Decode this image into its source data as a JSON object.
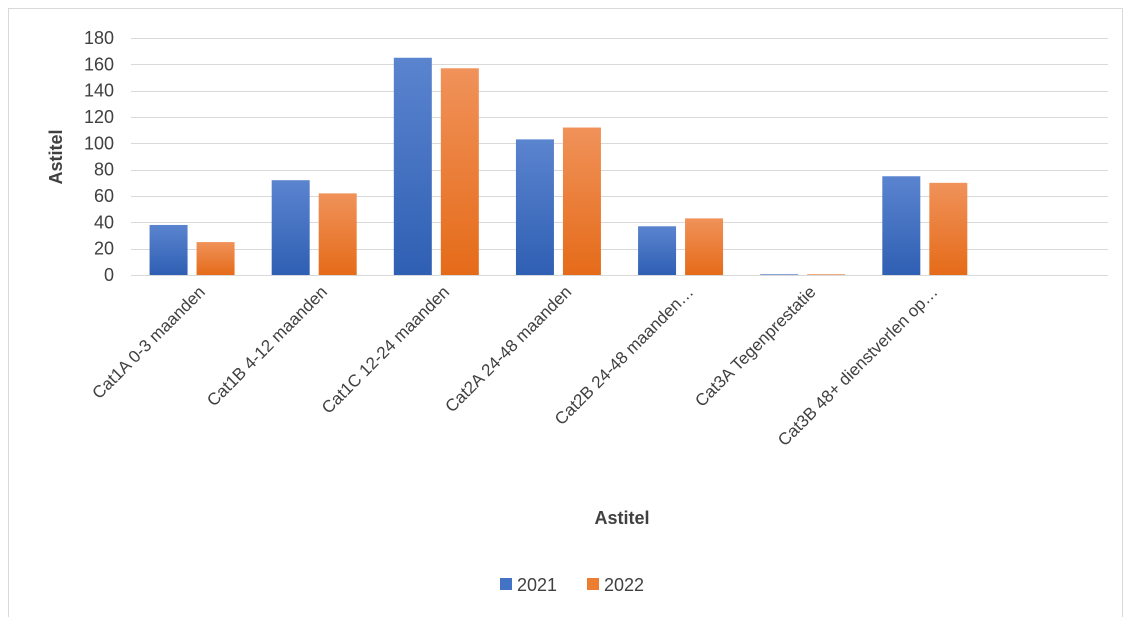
{
  "chart_data": {
    "type": "bar",
    "title": "",
    "xlabel": "Astitel",
    "ylabel": "Astitel",
    "ylim": [
      0,
      180
    ],
    "yticks": [
      0,
      20,
      40,
      60,
      80,
      100,
      120,
      140,
      160,
      180
    ],
    "grid": true,
    "legend_position": "bottom",
    "categories": [
      "Cat1A 0-3 maanden",
      "Cat1B 4-12 maanden",
      "Cat1C 12-24 maanden",
      "Cat2A 24-48 maanden",
      "Cat2B 24-48 maanden…",
      "Cat3A Tegenprestatie",
      "Cat3B 48+ dienstverlen op…",
      ""
    ],
    "series": [
      {
        "name": "2021",
        "color": "#4472C4",
        "values": [
          38,
          72,
          165,
          103,
          37,
          0.5,
          75,
          null
        ]
      },
      {
        "name": "2022",
        "color": "#ED7D31",
        "values": [
          25,
          62,
          157,
          112,
          43,
          0.5,
          70,
          null
        ]
      }
    ]
  }
}
